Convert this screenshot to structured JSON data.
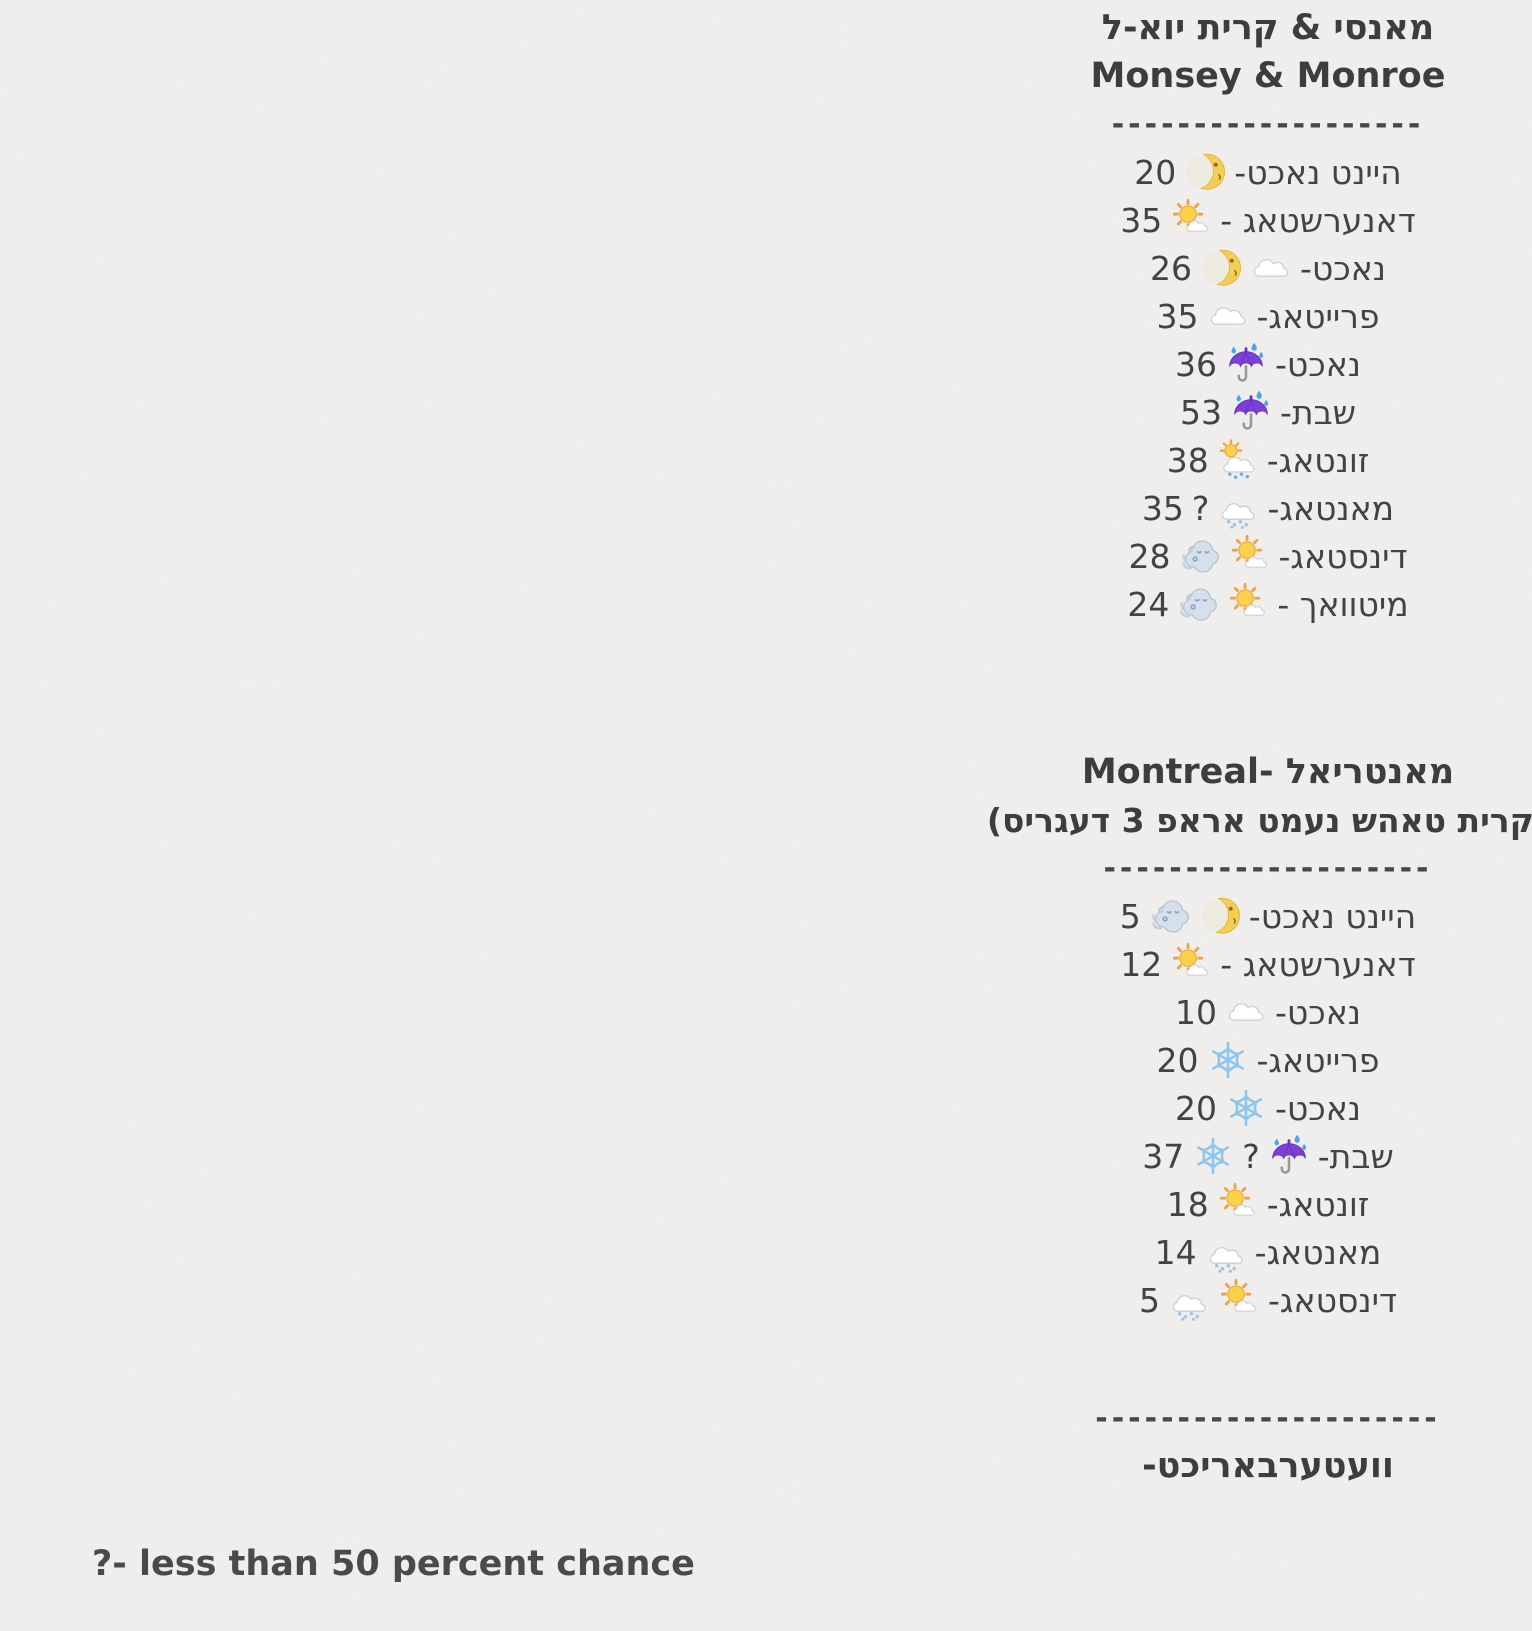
{
  "page": {
    "background": "#f1f0ee",
    "text_color": "#414144"
  },
  "sections": [
    {
      "id": "monsey-monroe",
      "title_he": "מאנסי & קרית יוא-ל",
      "title_en": "Monsey & Monroe",
      "separator": "-------------------",
      "rows": [
        {
          "label": "היינט נאכט-",
          "items": [
            {
              "icon": "moon-face"
            },
            {
              "text": "20"
            }
          ]
        },
        {
          "label": "דאנערשטאג -",
          "items": [
            {
              "icon": "sun-small-cloud"
            },
            {
              "text": "35"
            }
          ]
        },
        {
          "label": "נאכט-",
          "items": [
            {
              "icon": "cloud"
            },
            {
              "icon": "moon-face"
            },
            {
              "text": "26"
            }
          ]
        },
        {
          "label": "פרייטאג-",
          "items": [
            {
              "icon": "cloud"
            },
            {
              "text": "35"
            }
          ]
        },
        {
          "label": "נאכט-",
          "items": [
            {
              "icon": "umbrella-rain"
            },
            {
              "text": "36"
            }
          ]
        },
        {
          "label": "שבת-",
          "items": [
            {
              "icon": "umbrella-rain"
            },
            {
              "text": "53"
            }
          ]
        },
        {
          "label": "זונטאג-",
          "items": [
            {
              "icon": "sun-rain-cloud"
            },
            {
              "text": "38"
            }
          ]
        },
        {
          "label": "מאנטאג-",
          "items": [
            {
              "icon": "snow-cloud"
            },
            {
              "text": "?"
            },
            {
              "text": "35"
            }
          ]
        },
        {
          "label": "דינסטאג-",
          "items": [
            {
              "icon": "sun-small-cloud"
            },
            {
              "icon": "wind-face"
            },
            {
              "text": "28"
            }
          ]
        },
        {
          "label": "מיטוואך -",
          "items": [
            {
              "icon": "sun-small-cloud"
            },
            {
              "icon": "wind-face"
            },
            {
              "text": "24"
            }
          ]
        }
      ]
    },
    {
      "id": "montreal",
      "title_he": "מאנטריאל -Montreal",
      "subtitle": "(קרית טאהש נעמט אראפ 3 דעגריס)",
      "separator": "--------------------",
      "rows": [
        {
          "label": "היינט נאכט-",
          "items": [
            {
              "icon": "moon-face"
            },
            {
              "icon": "wind-face"
            },
            {
              "text": "5"
            }
          ]
        },
        {
          "label": "דאנערשטאג -",
          "items": [
            {
              "icon": "sun-small-cloud"
            },
            {
              "text": "12"
            }
          ]
        },
        {
          "label": "נאכט-",
          "items": [
            {
              "icon": "cloud"
            },
            {
              "text": "10"
            }
          ]
        },
        {
          "label": "פרייטאג-",
          "items": [
            {
              "icon": "snowflake"
            },
            {
              "text": "20"
            }
          ]
        },
        {
          "label": "נאכט-",
          "items": [
            {
              "icon": "snowflake"
            },
            {
              "text": "20"
            }
          ]
        },
        {
          "label": "שבת-",
          "items": [
            {
              "icon": "umbrella-rain"
            },
            {
              "text": "?"
            },
            {
              "icon": "snowflake"
            },
            {
              "text": "37"
            }
          ]
        },
        {
          "label": "זונטאג-",
          "items": [
            {
              "icon": "sun-small-cloud"
            },
            {
              "text": "18"
            }
          ]
        },
        {
          "label": "מאנטאג-",
          "items": [
            {
              "icon": "snow-cloud"
            },
            {
              "text": "14"
            }
          ]
        },
        {
          "label": "דינסטאג-",
          "items": [
            {
              "icon": "sun-small-cloud"
            },
            {
              "icon": "snow-cloud"
            },
            {
              "text": "5"
            }
          ]
        }
      ]
    }
  ],
  "footer": {
    "separator": "---------------------",
    "signature": "וועטערבאריכט-"
  },
  "legend": {
    "note": "?- less than 50 percent chance"
  },
  "icon_colors": {
    "sun": "#fcd24b",
    "sun_rays": "#f0a23b",
    "umbrella": "#7c3fd8",
    "rain_drop": "#4aa3f2",
    "snow": "#8ec6f0",
    "wind_cloud": "#d5e0ea"
  }
}
